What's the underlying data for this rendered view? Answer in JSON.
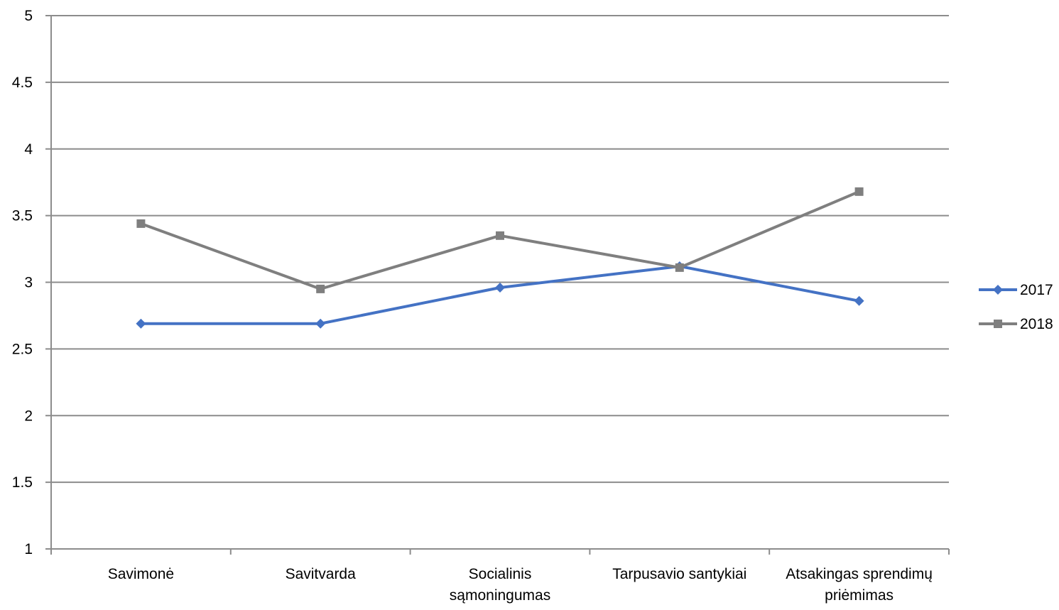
{
  "chart_data": {
    "type": "line",
    "title": "",
    "xlabel": "",
    "ylabel": "",
    "categories": [
      [
        "Savimonė"
      ],
      [
        "Savitvarda"
      ],
      [
        "Socialinis",
        "sąmoningumas"
      ],
      [
        "Tarpusavio santykiai"
      ],
      [
        "Atsakingas sprendimų",
        "priėmimas"
      ]
    ],
    "ylim": [
      1,
      5
    ],
    "yticks": [
      "1",
      "1.5",
      "2",
      "2.5",
      "3",
      "3.5",
      "4",
      "4.5",
      "5"
    ],
    "grid": true,
    "legend_position": "right",
    "series": [
      {
        "name": "2017",
        "color": "#4472C4",
        "marker": "diamond",
        "values": [
          2.69,
          2.69,
          2.96,
          3.12,
          2.86
        ]
      },
      {
        "name": "2018",
        "color": "#7F7F7F",
        "marker": "square",
        "values": [
          3.44,
          2.95,
          3.35,
          3.11,
          3.68
        ]
      }
    ]
  }
}
